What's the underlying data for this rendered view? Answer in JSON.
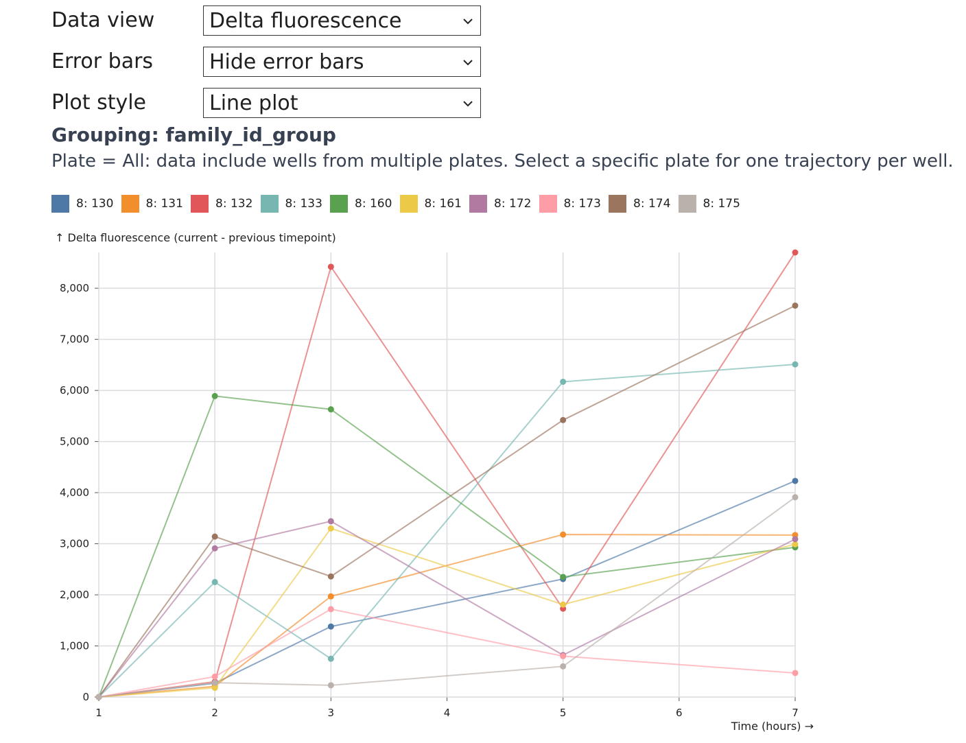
{
  "controls": [
    {
      "label": "Data view",
      "value": "Delta fluorescence"
    },
    {
      "label": "Error bars",
      "value": "Hide error bars"
    },
    {
      "label": "Plot style",
      "value": "Line plot"
    }
  ],
  "grouping_text": "Grouping: family_id_group",
  "plate_note": "Plate = All: data include wells from multiple plates. Select a specific plate for one trajectory per well.",
  "icons": {
    "select_chevron": "chevron-down-icon"
  },
  "chart_data": {
    "type": "line",
    "ylabel": "↑ Delta fluorescence (current - previous timepoint)",
    "xlabel": "Time (hours) →",
    "x": [
      1,
      2,
      3,
      5,
      7
    ],
    "xlim": [
      1,
      7
    ],
    "xticks": [
      1,
      2,
      3,
      4,
      5,
      6,
      7
    ],
    "ylim": [
      0,
      8700
    ],
    "yticks": [
      0,
      1000,
      2000,
      3000,
      4000,
      5000,
      6000,
      7000,
      8000
    ],
    "ytick_labels": [
      "0",
      "1,000",
      "2,000",
      "3,000",
      "4,000",
      "5,000",
      "6,000",
      "7,000",
      "8,000"
    ],
    "grid": true,
    "legend_position": "top",
    "series": [
      {
        "name": "8: 130",
        "color": "#4e79a7",
        "values": [
          0,
          270,
          1380,
          2310,
          4230
        ]
      },
      {
        "name": "8: 131",
        "color": "#f28e2b",
        "values": [
          0,
          210,
          1970,
          3180,
          3170
        ]
      },
      {
        "name": "8: 132",
        "color": "#e15759",
        "values": [
          0,
          300,
          8420,
          1730,
          8700
        ]
      },
      {
        "name": "8: 133",
        "color": "#76b7b2",
        "values": [
          0,
          2250,
          750,
          6170,
          6510
        ]
      },
      {
        "name": "8: 160",
        "color": "#59a14f",
        "values": [
          0,
          5890,
          5630,
          2350,
          2930
        ]
      },
      {
        "name": "8: 161",
        "color": "#edc948",
        "values": [
          0,
          180,
          3300,
          1810,
          2990
        ]
      },
      {
        "name": "8: 172",
        "color": "#b07aa1",
        "values": [
          0,
          2910,
          3440,
          820,
          3090
        ]
      },
      {
        "name": "8: 173",
        "color": "#ff9da7",
        "values": [
          0,
          400,
          1720,
          800,
          470
        ]
      },
      {
        "name": "8: 174",
        "color": "#9c755f",
        "values": [
          0,
          3140,
          2360,
          5420,
          7660
        ]
      },
      {
        "name": "8: 175",
        "color": "#bab0ac",
        "values": [
          0,
          280,
          230,
          600,
          3910
        ]
      }
    ]
  }
}
